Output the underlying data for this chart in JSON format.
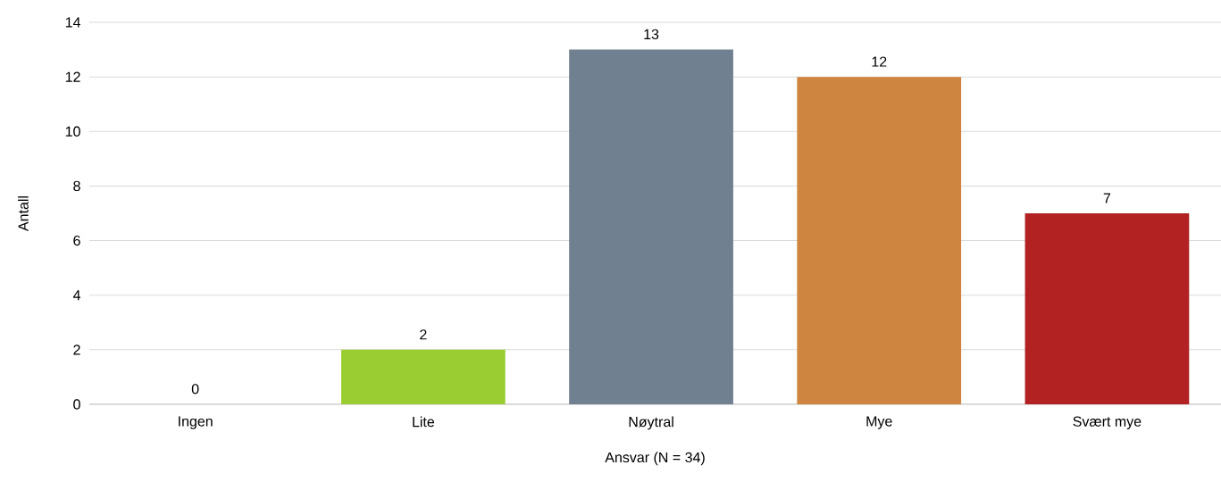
{
  "chart_data": {
    "type": "bar",
    "xlabel": "Ansvar (N = 34)",
    "ylabel": "Antall",
    "categories": [
      "Ingen",
      "Lite",
      "Nøytral",
      "Mye",
      "Svært mye"
    ],
    "values": [
      0,
      2,
      13,
      12,
      7
    ],
    "colors": [
      "#4472c4",
      "#9acd32",
      "#708090",
      "#cd853f",
      "#b22222"
    ],
    "ylim": [
      0,
      14
    ],
    "yticks": [
      0,
      2,
      4,
      6,
      8,
      10,
      12,
      14
    ],
    "grid": "y",
    "data_labels": true
  }
}
